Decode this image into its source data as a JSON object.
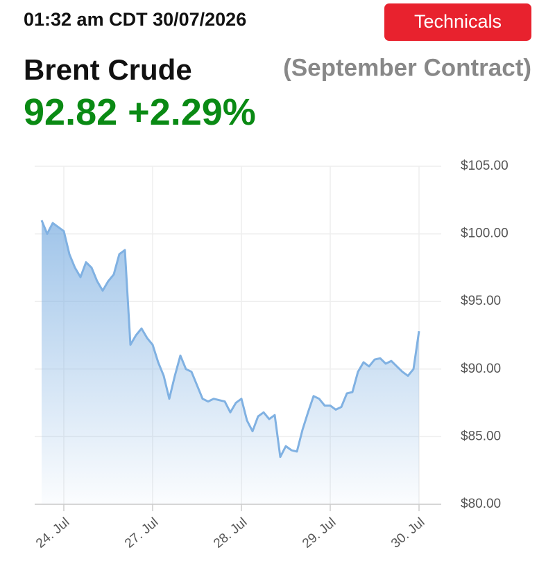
{
  "header": {
    "timestamp": "01:32 am CDT 30/07/2026",
    "button": "Technicals",
    "title": "Brent Crude",
    "subtitle": "(September Contract)",
    "price": "92.82",
    "change": "+2.29%"
  },
  "chart_data": {
    "type": "area",
    "categories": [
      null,
      null,
      null,
      null,
      "24. Jul",
      null,
      null,
      null,
      null,
      null,
      null,
      null,
      null,
      null,
      null,
      null,
      null,
      null,
      null,
      null,
      "27. Jul",
      null,
      null,
      null,
      null,
      null,
      null,
      null,
      null,
      null,
      null,
      null,
      null,
      null,
      null,
      null,
      "28. Jul",
      null,
      null,
      null,
      null,
      null,
      null,
      null,
      null,
      null,
      null,
      null,
      null,
      null,
      null,
      null,
      "29. Jul",
      null,
      null,
      null,
      null,
      null,
      null,
      null,
      null,
      null,
      null,
      null,
      null,
      null,
      null,
      null,
      "30. Jul"
    ],
    "series": [
      {
        "color": "#80b1e2",
        "values": [
          101.0,
          100.0,
          100.8,
          100.5,
          100.2,
          98.5,
          97.5,
          96.8,
          97.9,
          97.5,
          96.5,
          95.8,
          96.5,
          97.0,
          98.5,
          98.8,
          91.8,
          92.5,
          93.0,
          92.3,
          91.8,
          90.5,
          89.5,
          87.8,
          89.5,
          91.0,
          90.0,
          89.8,
          88.8,
          87.8,
          87.6,
          87.8,
          87.7,
          87.6,
          86.8,
          87.5,
          87.8,
          86.2,
          85.4,
          86.5,
          86.8,
          86.3,
          86.6,
          83.5,
          84.3,
          84.0,
          83.9,
          85.5,
          86.8,
          88.0,
          87.8,
          87.3,
          87.3,
          87.0,
          87.2,
          88.2,
          88.3,
          89.8,
          90.5,
          90.2,
          90.7,
          90.8,
          90.4,
          90.6,
          90.2,
          89.8,
          89.5,
          90.0,
          92.8
        ]
      }
    ],
    "ylim": [
      80,
      105
    ],
    "yticks": [
      {
        "value": 80,
        "label": "$80.00"
      },
      {
        "value": 85,
        "label": "$85.00"
      },
      {
        "value": 90,
        "label": "$90.00"
      },
      {
        "value": 95,
        "label": "$95.00"
      },
      {
        "value": 100,
        "label": "$100.00"
      },
      {
        "value": 105,
        "label": "$105.00"
      }
    ],
    "grid": true
  }
}
